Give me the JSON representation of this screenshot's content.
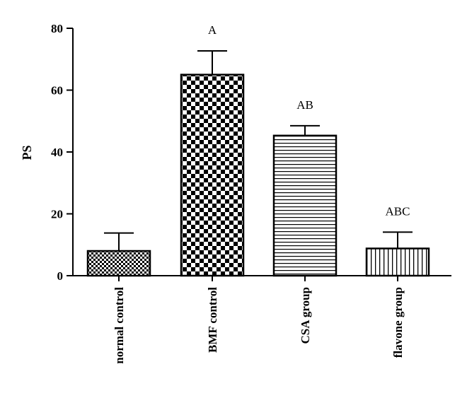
{
  "chart_data": {
    "type": "bar",
    "ylabel": "PS",
    "ylim": [
      0,
      80
    ],
    "yticks": [
      "0",
      "20",
      "40",
      "60",
      "80"
    ],
    "categories": [
      "normal control",
      "BMF control",
      "CSA group",
      "flavone group"
    ],
    "values": [
      8,
      65,
      45.3,
      8.8
    ],
    "errors": [
      5.8,
      7.7,
      3.2,
      5.3
    ],
    "annotations": [
      "",
      "A",
      "AB",
      "ABC"
    ],
    "fill_patterns": [
      "fine-check",
      "coarse-check",
      "horizontal-lines",
      "vertical-lines"
    ],
    "grid": false,
    "legend": "none"
  }
}
